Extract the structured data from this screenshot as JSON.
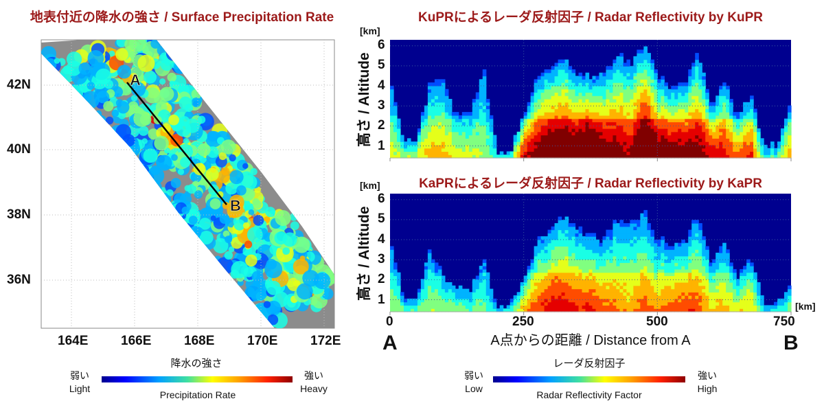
{
  "map": {
    "title": "地表付近の降水の強さ / Surface Precipitation Rate",
    "lat_ticks": [
      "42N",
      "40N",
      "38N",
      "36N"
    ],
    "lon_ticks": [
      "164E",
      "166E",
      "168E",
      "170E",
      "172E"
    ],
    "point_a": "A",
    "point_b": "B",
    "colorbar": {
      "title": "降水の強さ",
      "low_ja": "弱い",
      "low_en": "Light",
      "high_ja": "強い",
      "high_en": "Heavy",
      "label": "Precipitation Rate"
    }
  },
  "ku": {
    "title": "KuPRによるレーダ反射因子 / Radar Reflectivity by KuPR"
  },
  "ka": {
    "title": "KaPRによるレーダ反射因子 / Radar Reflectivity by KaPR"
  },
  "profile_axes": {
    "unit": "[km]",
    "ylabel": "高さ / Altitude",
    "y_ticks": [
      "6",
      "5",
      "4",
      "3",
      "2",
      "1"
    ],
    "x_ticks": [
      "0",
      "250",
      "500",
      "750"
    ],
    "xlabel": "A点からの距離 / Distance from A",
    "start": "A",
    "end": "B"
  },
  "colorbar2": {
    "title": "レーダ反射因子",
    "low_ja": "弱い",
    "low_en": "Low",
    "high_ja": "強い",
    "high_en": "High",
    "label": "Radar Reflectivity Factor"
  },
  "colors": {
    "title": "#9c1a1a",
    "background_plot": "#00008f",
    "land_gray": "#8c8c8c"
  },
  "chart_data": [
    {
      "type": "heatmap",
      "title": "地表付近の降水の強さ / Surface Precipitation Rate",
      "xlim": [
        "163E",
        "172.3E"
      ],
      "ylim": [
        "34.6N",
        "43.4N"
      ],
      "colormap": "jet"
    },
    {
      "type": "heatmap",
      "title": "KuPRによるレーダ反射因子 / Radar Reflectivity by KuPR",
      "xlabel": "A点からの距離 / Distance from A",
      "ylabel": "高さ / Altitude",
      "xlim": [
        0,
        750
      ],
      "ylim": [
        0.4,
        6.3
      ],
      "colormap": "jet",
      "distance_km": [
        0,
        25,
        50,
        75,
        100,
        125,
        150,
        175,
        200,
        225,
        250,
        275,
        300,
        325,
        350,
        375,
        400,
        425,
        450,
        475,
        500,
        525,
        550,
        575,
        600,
        625,
        650,
        675,
        700,
        725,
        750
      ],
      "echo_top_km": [
        4.4,
        1.3,
        1.1,
        4.2,
        4.3,
        2.5,
        2.5,
        4.8,
        0.6,
        0.7,
        2.5,
        4.5,
        5.0,
        5.5,
        4.5,
        4.5,
        4.5,
        5.7,
        5.0,
        6.2,
        4.5,
        4.0,
        4.0,
        5.8,
        3.0,
        4.2,
        2.5,
        3.5,
        1.0,
        1.0,
        3.2
      ],
      "relative_intensity": [
        0.35,
        0.35,
        0.4,
        0.45,
        0.45,
        0.4,
        0.35,
        0.3,
        0.2,
        0.3,
        0.7,
        0.75,
        0.85,
        0.85,
        0.85,
        0.95,
        0.8,
        0.75,
        0.7,
        0.95,
        0.8,
        0.8,
        0.8,
        0.75,
        0.7,
        0.65,
        0.55,
        0.65,
        0.2,
        0.3,
        0.5
      ]
    },
    {
      "type": "heatmap",
      "title": "KaPRによるレーダ反射因子 / Radar Reflectivity by KaPR",
      "xlabel": "A点からの距離 / Distance from A",
      "ylabel": "高さ / Altitude",
      "xlim": [
        0,
        750
      ],
      "ylim": [
        0.4,
        6.3
      ],
      "colormap": "jet",
      "distance_km": [
        0,
        25,
        50,
        75,
        100,
        125,
        150,
        175,
        200,
        225,
        250,
        275,
        300,
        325,
        350,
        375,
        400,
        425,
        450,
        475,
        500,
        525,
        550,
        575,
        600,
        625,
        650,
        675,
        700,
        725,
        750
      ],
      "echo_top_km": [
        3.8,
        1.2,
        1.0,
        3.5,
        2.2,
        1.5,
        1.5,
        3.0,
        0.6,
        0.7,
        2.0,
        4.0,
        4.5,
        5.2,
        4.5,
        4.2,
        4.0,
        5.0,
        4.8,
        5.5,
        4.0,
        3.8,
        3.8,
        5.3,
        2.8,
        3.8,
        2.2,
        3.0,
        0.8,
        0.8,
        2.0
      ],
      "relative_intensity": [
        0.3,
        0.28,
        0.3,
        0.32,
        0.3,
        0.3,
        0.28,
        0.25,
        0.15,
        0.25,
        0.5,
        0.58,
        0.65,
        0.65,
        0.6,
        0.62,
        0.55,
        0.5,
        0.45,
        0.55,
        0.5,
        0.55,
        0.6,
        0.55,
        0.45,
        0.45,
        0.4,
        0.45,
        0.15,
        0.2,
        0.3
      ]
    }
  ]
}
